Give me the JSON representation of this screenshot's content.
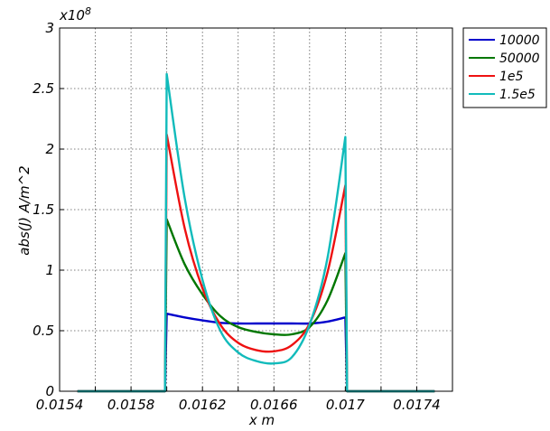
{
  "chart_data": {
    "type": "line",
    "title": "",
    "xlabel": "x m",
    "ylabel": "abs(J) A/m^2",
    "y_multiplier_label": "x10",
    "y_multiplier_exponent": "8",
    "xlim": [
      0.0154,
      0.0176
    ],
    "ylim": [
      0,
      3
    ],
    "x_ticks": [
      0.0154,
      0.0158,
      0.0162,
      0.0166,
      0.017,
      0.0174
    ],
    "x_tick_labels": [
      "0.0154",
      "0.0158",
      "0.0162",
      "0.0166",
      "0.017",
      "0.0174"
    ],
    "y_ticks": [
      0,
      0.5,
      1,
      1.5,
      2,
      2.5,
      3
    ],
    "y_tick_labels": [
      "0",
      "0.5",
      "1",
      "1.5",
      "2",
      "2.5",
      "3"
    ],
    "grid": true,
    "legend_position": "outside-top-right",
    "series": [
      {
        "name": "10000",
        "color": "#0000cc",
        "x": [
          0.0155,
          0.01599,
          0.016,
          0.0161,
          0.0162,
          0.0163,
          0.0164,
          0.0165,
          0.0166,
          0.0167,
          0.0168,
          0.0169,
          0.017,
          0.01701,
          0.0175
        ],
        "y": [
          0,
          0,
          0.64,
          0.61,
          0.585,
          0.565,
          0.56,
          0.56,
          0.56,
          0.56,
          0.56,
          0.575,
          0.61,
          0,
          0
        ]
      },
      {
        "name": "50000",
        "color": "#007700",
        "x": [
          0.0155,
          0.01599,
          0.016,
          0.0161,
          0.0162,
          0.0163,
          0.0164,
          0.0165,
          0.0166,
          0.0167,
          0.0168,
          0.0169,
          0.017,
          0.01701,
          0.0175
        ],
        "y": [
          0,
          0,
          1.42,
          1.05,
          0.8,
          0.62,
          0.53,
          0.49,
          0.47,
          0.47,
          0.53,
          0.75,
          1.14,
          0,
          0
        ]
      },
      {
        "name": "1e5",
        "color": "#ee1111",
        "x": [
          0.0155,
          0.01599,
          0.016,
          0.0161,
          0.0162,
          0.0163,
          0.0164,
          0.0165,
          0.0166,
          0.0167,
          0.0168,
          0.0169,
          0.017,
          0.01701,
          0.0175
        ],
        "y": [
          0,
          0,
          2.12,
          1.35,
          0.85,
          0.55,
          0.4,
          0.34,
          0.33,
          0.38,
          0.56,
          0.98,
          1.7,
          0,
          0
        ]
      },
      {
        "name": "1.5e5",
        "color": "#11bbbb",
        "x": [
          0.0155,
          0.01599,
          0.016,
          0.0161,
          0.0162,
          0.0163,
          0.0164,
          0.0165,
          0.0166,
          0.0167,
          0.0168,
          0.0169,
          0.017,
          0.01701,
          0.0175
        ],
        "y": [
          0,
          0,
          2.62,
          1.6,
          0.92,
          0.5,
          0.32,
          0.25,
          0.23,
          0.28,
          0.55,
          1.1,
          2.1,
          0,
          0
        ]
      }
    ]
  }
}
